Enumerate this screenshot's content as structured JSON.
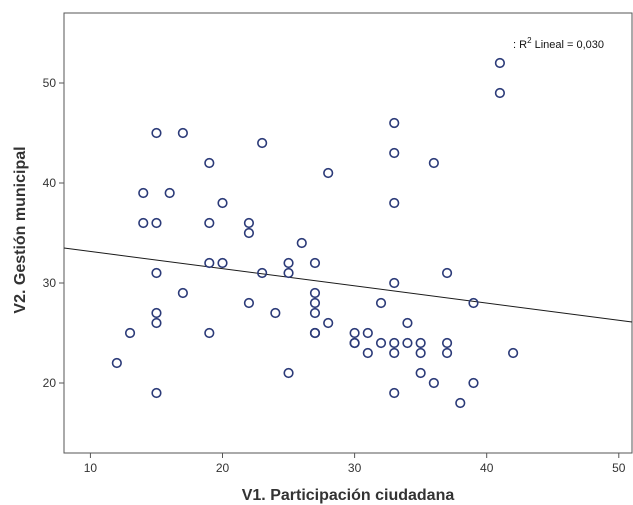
{
  "chart_data": {
    "type": "scatter",
    "xlabel": "V1. Participación ciudadana",
    "ylabel": "V2. Gestión municipal",
    "xlim": [
      8,
      51
    ],
    "ylim": [
      13,
      57
    ],
    "xticks": [
      10,
      20,
      30,
      40,
      50
    ],
    "yticks": [
      20,
      30,
      40,
      50
    ],
    "grid": false,
    "annotation": {
      "prefix": ": R",
      "superscript": "2",
      "suffix": " Lineal = 0,030"
    },
    "fit_line": {
      "x": [
        8,
        51
      ],
      "y": [
        33.5,
        26.1
      ]
    },
    "marker_color": "#2b3a78",
    "line_color": "#1a1a1a",
    "points": [
      {
        "x": 12,
        "y": 22
      },
      {
        "x": 13,
        "y": 25
      },
      {
        "x": 14,
        "y": 39
      },
      {
        "x": 14,
        "y": 36
      },
      {
        "x": 15,
        "y": 45
      },
      {
        "x": 15,
        "y": 36
      },
      {
        "x": 15,
        "y": 31
      },
      {
        "x": 15,
        "y": 27
      },
      {
        "x": 15,
        "y": 26
      },
      {
        "x": 15,
        "y": 19
      },
      {
        "x": 16,
        "y": 39
      },
      {
        "x": 17,
        "y": 45
      },
      {
        "x": 17,
        "y": 29
      },
      {
        "x": 19,
        "y": 42
      },
      {
        "x": 19,
        "y": 36
      },
      {
        "x": 19,
        "y": 32
      },
      {
        "x": 19,
        "y": 25
      },
      {
        "x": 20,
        "y": 38
      },
      {
        "x": 20,
        "y": 32
      },
      {
        "x": 22,
        "y": 36
      },
      {
        "x": 22,
        "y": 35
      },
      {
        "x": 22,
        "y": 28
      },
      {
        "x": 23,
        "y": 44
      },
      {
        "x": 23,
        "y": 31
      },
      {
        "x": 24,
        "y": 27
      },
      {
        "x": 25,
        "y": 32
      },
      {
        "x": 25,
        "y": 31
      },
      {
        "x": 25,
        "y": 21
      },
      {
        "x": 26,
        "y": 34
      },
      {
        "x": 27,
        "y": 32
      },
      {
        "x": 27,
        "y": 29
      },
      {
        "x": 27,
        "y": 28
      },
      {
        "x": 27,
        "y": 27
      },
      {
        "x": 27,
        "y": 25
      },
      {
        "x": 27,
        "y": 25
      },
      {
        "x": 28,
        "y": 41
      },
      {
        "x": 28,
        "y": 26
      },
      {
        "x": 30,
        "y": 25
      },
      {
        "x": 30,
        "y": 24
      },
      {
        "x": 30,
        "y": 24
      },
      {
        "x": 31,
        "y": 25
      },
      {
        "x": 31,
        "y": 23
      },
      {
        "x": 32,
        "y": 28
      },
      {
        "x": 32,
        "y": 24
      },
      {
        "x": 33,
        "y": 46
      },
      {
        "x": 33,
        "y": 43
      },
      {
        "x": 33,
        "y": 38
      },
      {
        "x": 33,
        "y": 30
      },
      {
        "x": 33,
        "y": 24
      },
      {
        "x": 33,
        "y": 23
      },
      {
        "x": 33,
        "y": 19
      },
      {
        "x": 34,
        "y": 26
      },
      {
        "x": 34,
        "y": 24
      },
      {
        "x": 35,
        "y": 24
      },
      {
        "x": 35,
        "y": 23
      },
      {
        "x": 35,
        "y": 21
      },
      {
        "x": 36,
        "y": 42
      },
      {
        "x": 36,
        "y": 20
      },
      {
        "x": 37,
        "y": 31
      },
      {
        "x": 37,
        "y": 24
      },
      {
        "x": 37,
        "y": 23
      },
      {
        "x": 38,
        "y": 18
      },
      {
        "x": 39,
        "y": 28
      },
      {
        "x": 39,
        "y": 20
      },
      {
        "x": 41,
        "y": 52
      },
      {
        "x": 41,
        "y": 49
      },
      {
        "x": 42,
        "y": 23
      }
    ]
  }
}
